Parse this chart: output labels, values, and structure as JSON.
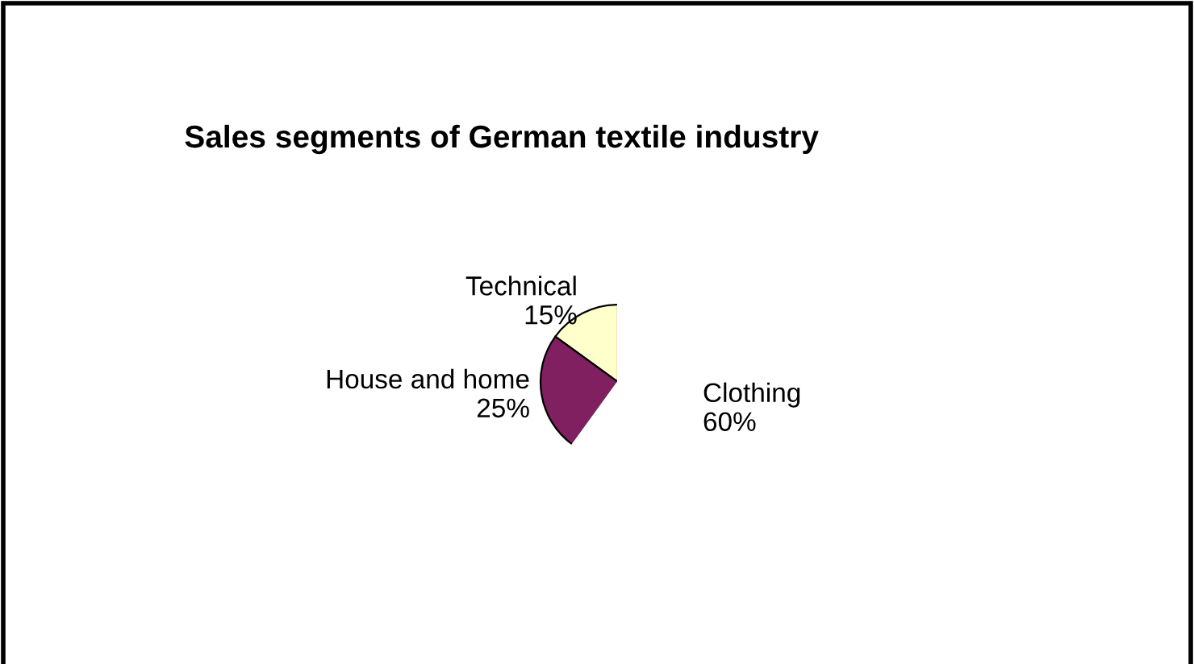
{
  "chart_data": {
    "type": "pie",
    "title": "Sales segments of German textile industry",
    "categories": [
      "Technical",
      "House and home",
      "Clothing"
    ],
    "values": [
      15,
      25,
      60
    ],
    "value_labels": [
      "15%",
      "25%",
      "60%"
    ],
    "colors": [
      "#ffffcc",
      "#802060",
      "#ffffff"
    ]
  }
}
